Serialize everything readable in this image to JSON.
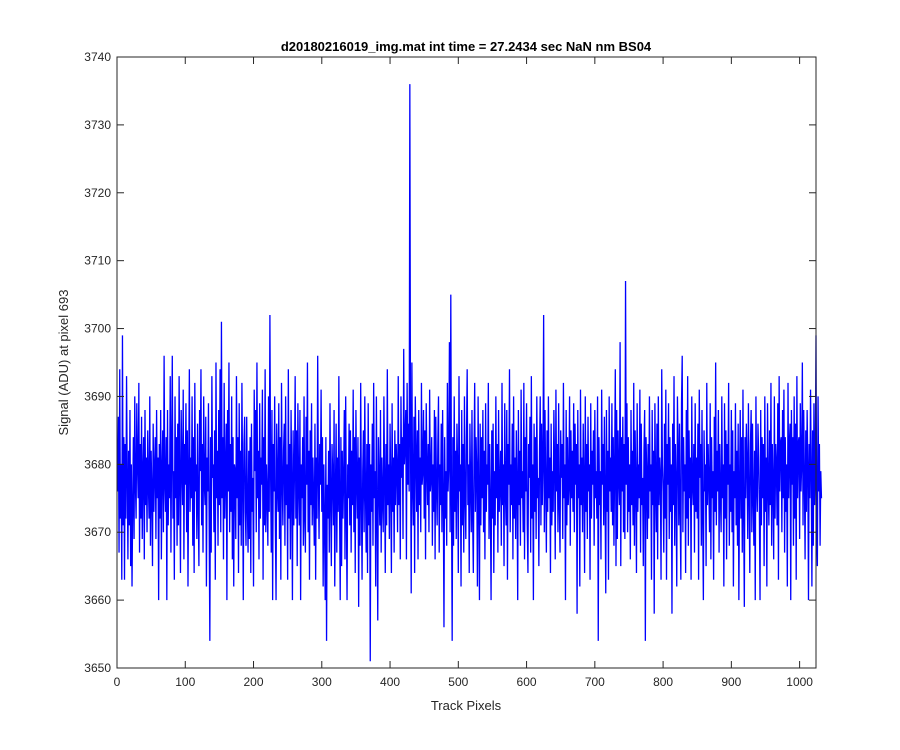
{
  "chart_data": {
    "type": "line",
    "title": "d20180216019_img.mat int time = 27.2434 sec  NaN nm BS04",
    "xlabel": "Track Pixels",
    "ylabel": "Signal (ADU) at pixel 693",
    "xlim": [
      0,
      1024
    ],
    "ylim": [
      3650,
      3740
    ],
    "x_ticks": [
      0,
      100,
      200,
      300,
      400,
      500,
      600,
      700,
      800,
      900,
      1000
    ],
    "y_ticks": [
      3650,
      3660,
      3670,
      3680,
      3690,
      3700,
      3710,
      3720,
      3730,
      3740
    ],
    "grid": false,
    "series": [
      {
        "color": "#0000ff",
        "x_start": 1,
        "x_step": 1,
        "values": [
          3676,
          3687,
          3667,
          3694,
          3672,
          3680,
          3663,
          3699,
          3671,
          3684,
          3663,
          3683,
          3672,
          3693,
          3678,
          3666,
          3682,
          3671,
          3688,
          3665,
          3680,
          3662,
          3674,
          3684,
          3669,
          3690,
          3677,
          3672,
          3689,
          3680,
          3675,
          3692,
          3667,
          3683,
          3672,
          3687,
          3669,
          3679,
          3684,
          3666,
          3688,
          3674,
          3681,
          3670,
          3685,
          3677,
          3672,
          3690,
          3668,
          3682,
          3676,
          3665,
          3686,
          3673,
          3679,
          3684,
          3669,
          3688,
          3675,
          3681,
          3660,
          3683,
          3672,
          3688,
          3666,
          3679,
          3685,
          3670,
          3696,
          3677,
          3673,
          3684,
          3660,
          3688,
          3671,
          3680,
          3675,
          3693,
          3667,
          3682,
          3696,
          3672,
          3679,
          3663,
          3690,
          3675,
          3684,
          3668,
          3686,
          3671,
          3693,
          3677,
          3664,
          3688,
          3680,
          3674,
          3691,
          3666,
          3683,
          3677,
          3689,
          3670,
          3685,
          3662,
          3679,
          3694,
          3673,
          3681,
          3675,
          3690,
          3668,
          3684,
          3664,
          3692,
          3676,
          3680,
          3669,
          3686,
          3674,
          3665,
          3688,
          3679,
          3694,
          3671,
          3683,
          3667,
          3690,
          3677,
          3674,
          3687,
          3662,
          3681,
          3676,
          3689,
          3672,
          3654,
          3684,
          3667,
          3693,
          3678,
          3680,
          3670,
          3685,
          3663,
          3695,
          3675,
          3682,
          3668,
          3688,
          3674,
          3694,
          3670,
          3701,
          3675,
          3684,
          3666,
          3692,
          3672,
          3679,
          3686,
          3660,
          3688,
          3676,
          3695,
          3670,
          3683,
          3673,
          3690,
          3666,
          3684,
          3662,
          3680,
          3679,
          3669,
          3693,
          3675,
          3684,
          3664,
          3689,
          3671,
          3682,
          3668,
          3692,
          3678,
          3660,
          3683,
          3687,
          3673,
          3668,
          3687,
          3674,
          3667,
          3682,
          3669,
          3684,
          3664,
          3686,
          3673,
          3678,
          3662,
          3691,
          3679,
          3688,
          3670,
          3695,
          3675,
          3682,
          3666,
          3689,
          3672,
          3681,
          3677,
          3691,
          3663,
          3684,
          3671,
          3694,
          3670,
          3680,
          3675,
          3668,
          3690,
          3673,
          3702,
          3679,
          3667,
          3688,
          3660,
          3683,
          3676,
          3690,
          3671,
          3660,
          3686,
          3677,
          3673,
          3689,
          3669,
          3684,
          3663,
          3692,
          3678,
          3671,
          3682,
          3686,
          3668,
          3690,
          3674,
          3680,
          3663,
          3694,
          3672,
          3683,
          3666,
          3688,
          3677,
          3660,
          3685,
          3671,
          3679,
          3693,
          3672,
          3685,
          3665,
          3689,
          3677,
          3671,
          3688,
          3660,
          3680,
          3675,
          3684,
          3668,
          3690,
          3672,
          3667,
          3687,
          3677,
          3695,
          3670,
          3682,
          3663,
          3685,
          3674,
          3689,
          3671,
          3681,
          3675,
          3668,
          3686,
          3663,
          3681,
          3672,
          3696,
          3678,
          3669,
          3683,
          3677,
          3691,
          3673,
          3684,
          3662,
          3680,
          3671,
          3660,
          3684,
          3654,
          3677,
          3672,
          3682,
          3667,
          3689,
          3675,
          3665,
          3683,
          3678,
          3671,
          3688,
          3662,
          3676,
          3686,
          3667,
          3681,
          3673,
          3693,
          3674,
          3660,
          3684,
          3665,
          3682,
          3672,
          3678,
          3688,
          3666,
          3690,
          3673,
          3660,
          3680,
          3675,
          3686,
          3671,
          3685,
          3667,
          3682,
          3674,
          3691,
          3670,
          3684,
          3664,
          3688,
          3678,
          3672,
          3684,
          3659,
          3681,
          3668,
          3692,
          3675,
          3663,
          3679,
          3685,
          3670,
          3690,
          3676,
          3667,
          3683,
          3664,
          3689,
          3671,
          3683,
          3651,
          3680,
          3673,
          3686,
          3668,
          3692,
          3675,
          3679,
          3662,
          3690,
          3673,
          3657,
          3684,
          3677,
          3671,
          3688,
          3667,
          3681,
          3675,
          3670,
          3690,
          3678,
          3664,
          3683,
          3671,
          3694,
          3674,
          3680,
          3669,
          3686,
          3677,
          3664,
          3689,
          3673,
          3681,
          3667,
          3685,
          3674,
          3683,
          3679,
          3670,
          3693,
          3674,
          3683,
          3666,
          3690,
          3678,
          3684,
          3669,
          3697,
          3680,
          3683,
          3688,
          3666,
          3692,
          3677,
          3686,
          3676,
          3736,
          3683,
          3661,
          3695,
          3677,
          3671,
          3687,
          3664,
          3690,
          3682,
          3673,
          3685,
          3666,
          3688,
          3674,
          3681,
          3670,
          3692,
          3677,
          3679,
          3688,
          3672,
          3685,
          3666,
          3689,
          3680,
          3674,
          3683,
          3670,
          3691,
          3676,
          3678,
          3684,
          3668,
          3680,
          3673,
          3688,
          3666,
          3687,
          3677,
          3671,
          3683,
          3690,
          3667,
          3680,
          3674,
          3686,
          3670,
          3688,
          3675,
          3656,
          3684,
          3672,
          3679,
          3668,
          3692,
          3676,
          3680,
          3698,
          3670,
          3705,
          3675,
          3654,
          3684,
          3668,
          3690,
          3673,
          3682,
          3669,
          3686,
          3679,
          3664,
          3693,
          3676,
          3680,
          3662,
          3688,
          3671,
          3683,
          3667,
          3690,
          3675,
          3669,
          3684,
          3694,
          3674,
          3680,
          3664,
          3686,
          3677,
          3670,
          3688,
          3672,
          3664,
          3681,
          3692,
          3673,
          3684,
          3679,
          3662,
          3690,
          3675,
          3660,
          3686,
          3671,
          3684,
          3675,
          3688,
          3670,
          3682,
          3666,
          3689,
          3673,
          3680,
          3677,
          3692,
          3669,
          3683,
          3674,
          3660,
          3685,
          3672,
          3686,
          3664,
          3679,
          3671,
          3690,
          3675,
          3683,
          3667,
          3688,
          3673,
          3677,
          3682,
          3668,
          3692,
          3674,
          3680,
          3665,
          3689,
          3676,
          3671,
          3688,
          3663,
          3683,
          3677,
          3694,
          3670,
          3680,
          3674,
          3686,
          3666,
          3690,
          3672,
          3681,
          3669,
          3685,
          3677,
          3660,
          3688,
          3674,
          3682,
          3668,
          3691,
          3675,
          3679,
          3670,
          3692,
          3666,
          3684,
          3676,
          3689,
          3671,
          3664,
          3683,
          3678,
          3687,
          3667,
          3693,
          3672,
          3680,
          3660,
          3686,
          3673,
          3684,
          3669,
          3690,
          3675,
          3678,
          3665,
          3682,
          3690,
          3671,
          3686,
          3674,
          3680,
          3702,
          3670,
          3688,
          3677,
          3667,
          3685,
          3673,
          3690,
          3675,
          3681,
          3664,
          3686,
          3671,
          3679,
          3673,
          3688,
          3680,
          3666,
          3691,
          3676,
          3683,
          3670,
          3689,
          3674,
          3667,
          3685,
          3678,
          3683,
          3669,
          3692,
          3675,
          3680,
          3660,
          3688,
          3671,
          3684,
          3674,
          3677,
          3690,
          3668,
          3685,
          3675,
          3682,
          3673,
          3689,
          3670,
          3686,
          3677,
          3683,
          3658,
          3688,
          3675,
          3680,
          3662,
          3691,
          3674,
          3681,
          3670,
          3686,
          3677,
          3664,
          3690,
          3673,
          3683,
          3669,
          3687,
          3676,
          3680,
          3663,
          3689,
          3672,
          3682,
          3677,
          3685,
          3668,
          3688,
          3675,
          3679,
          3672,
          3690,
          3654,
          3684,
          3674,
          3679,
          3666,
          3691,
          3677,
          3683,
          3671,
          3687,
          3675,
          3661,
          3688,
          3673,
          3682,
          3663,
          3690,
          3676,
          3681,
          3673,
          3689,
          3671,
          3684,
          3668,
          3680,
          3694,
          3665,
          3688,
          3669,
          3685,
          3678,
          3674,
          3698,
          3665,
          3684,
          3676,
          3687,
          3670,
          3683,
          3669,
          3707,
          3677,
          3689,
          3670,
          3684,
          3673,
          3680,
          3666,
          3688,
          3674,
          3682,
          3671,
          3692,
          3668,
          3685,
          3677,
          3664,
          3689,
          3673,
          3680,
          3675,
          3691,
          3667,
          3686,
          3674,
          3678,
          3665,
          3682,
          3688,
          3654,
          3684,
          3679,
          3669,
          3683,
          3672,
          3690,
          3676,
          3680,
          3663,
          3688,
          3674,
          3682,
          3658,
          3689,
          3677,
          3670,
          3686,
          3666,
          3690,
          3674,
          3681,
          3678,
          3663,
          3694,
          3680,
          3676,
          3667,
          3686,
          3672,
          3691,
          3663,
          3683,
          3677,
          3689,
          3669,
          3684,
          3673,
          3680,
          3658,
          3686,
          3674,
          3693,
          3668,
          3683,
          3677,
          3662,
          3690,
          3682,
          3671,
          3686,
          3673,
          3663,
          3689,
          3696,
          3670,
          3684,
          3676,
          3680,
          3664,
          3688,
          3672,
          3693,
          3668,
          3685,
          3675,
          3681,
          3663,
          3690,
          3677,
          3674,
          3683,
          3667,
          3689,
          3673,
          3681,
          3672,
          3686,
          3663,
          3691,
          3678,
          3683,
          3668,
          3688,
          3672,
          3660,
          3685,
          3676,
          3680,
          3665,
          3692,
          3674,
          3683,
          3677,
          3670,
          3689,
          3666,
          3684,
          3675,
          3679,
          3663,
          3687,
          3673,
          3695,
          3671,
          3682,
          3676,
          3688,
          3667,
          3683,
          3675,
          3670,
          3690,
          3675,
          3680,
          3662,
          3689,
          3672,
          3685,
          3666,
          3683,
          3677,
          3692,
          3668,
          3680,
          3673,
          3688,
          3670,
          3685,
          3662,
          3679,
          3675,
          3689,
          3671,
          3682,
          3668,
          3686,
          3660,
          3677,
          3688,
          3672,
          3684,
          3667,
          3691,
          3673,
          3659,
          3684,
          3675,
          3686,
          3680,
          3669,
          3689,
          3676,
          3664,
          3683,
          3688,
          3670,
          3686,
          3675,
          3668,
          3682,
          3660,
          3690,
          3677,
          3673,
          3686,
          3681,
          3674,
          3660,
          3688,
          3671,
          3684,
          3675,
          3683,
          3665,
          3690,
          3673,
          3681,
          3662,
          3689,
          3677,
          3671,
          3685,
          3674,
          3692,
          3668,
          3683,
          3677,
          3666,
          3690,
          3672,
          3683,
          3680,
          3671,
          3689,
          3663,
          3693,
          3676,
          3683,
          3684,
          3670,
          3688,
          3675,
          3691,
          3667,
          3684,
          3673,
          3680,
          3662,
          3692,
          3675,
          3683,
          3686,
          3660,
          3688,
          3677,
          3684,
          3668,
          3690,
          3672,
          3686,
          3663,
          3693,
          3675,
          3683,
          3684,
          3669,
          3689,
          3676,
          3680,
          3695,
          3671,
          3688,
          3678,
          3666,
          3685,
          3673,
          3688,
          3680,
          3660,
          3683,
          3675,
          3691,
          3679,
          3662,
          3685,
          3668,
          3689,
          3674,
          3681,
          3699,
          3671,
          3665,
          3690,
          3676,
          3683,
          3668,
          3679,
          3675
        ]
      }
    ]
  }
}
